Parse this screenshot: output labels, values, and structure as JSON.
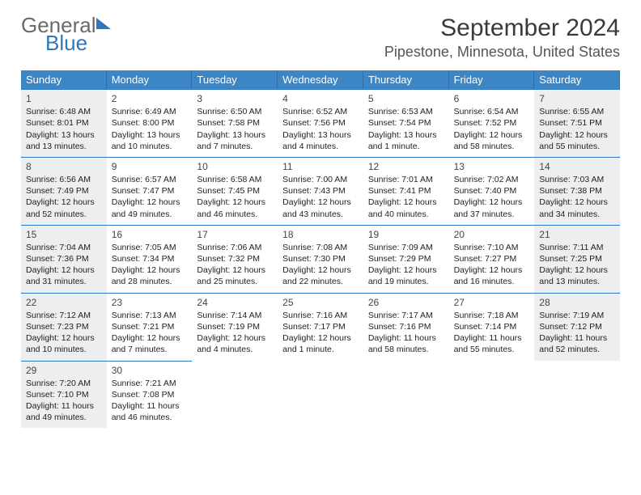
{
  "logo": {
    "general": "General",
    "blue": "Blue"
  },
  "header": {
    "month_title": "September 2024",
    "location": "Pipestone, Minnesota, United States"
  },
  "colors": {
    "header_bg": "#3d86c6",
    "header_text": "#ffffff",
    "accent": "#2f78bf",
    "shaded_bg": "#eceeef",
    "body_text": "#222222",
    "page_bg": "#ffffff"
  },
  "typography": {
    "month_title_fontsize": 30,
    "location_fontsize": 18,
    "dow_fontsize": 13,
    "cell_fontsize": 10.5,
    "daynum_fontsize": 12
  },
  "days_of_week": [
    "Sunday",
    "Monday",
    "Tuesday",
    "Wednesday",
    "Thursday",
    "Friday",
    "Saturday"
  ],
  "days": [
    {
      "n": "1",
      "shaded": true,
      "sunrise": "Sunrise: 6:48 AM",
      "sunset": "Sunset: 8:01 PM",
      "daylight": "Daylight: 13 hours and 13 minutes."
    },
    {
      "n": "2",
      "shaded": false,
      "sunrise": "Sunrise: 6:49 AM",
      "sunset": "Sunset: 8:00 PM",
      "daylight": "Daylight: 13 hours and 10 minutes."
    },
    {
      "n": "3",
      "shaded": false,
      "sunrise": "Sunrise: 6:50 AM",
      "sunset": "Sunset: 7:58 PM",
      "daylight": "Daylight: 13 hours and 7 minutes."
    },
    {
      "n": "4",
      "shaded": false,
      "sunrise": "Sunrise: 6:52 AM",
      "sunset": "Sunset: 7:56 PM",
      "daylight": "Daylight: 13 hours and 4 minutes."
    },
    {
      "n": "5",
      "shaded": false,
      "sunrise": "Sunrise: 6:53 AM",
      "sunset": "Sunset: 7:54 PM",
      "daylight": "Daylight: 13 hours and 1 minute."
    },
    {
      "n": "6",
      "shaded": false,
      "sunrise": "Sunrise: 6:54 AM",
      "sunset": "Sunset: 7:52 PM",
      "daylight": "Daylight: 12 hours and 58 minutes."
    },
    {
      "n": "7",
      "shaded": true,
      "sunrise": "Sunrise: 6:55 AM",
      "sunset": "Sunset: 7:51 PM",
      "daylight": "Daylight: 12 hours and 55 minutes."
    },
    {
      "n": "8",
      "shaded": true,
      "sunrise": "Sunrise: 6:56 AM",
      "sunset": "Sunset: 7:49 PM",
      "daylight": "Daylight: 12 hours and 52 minutes."
    },
    {
      "n": "9",
      "shaded": false,
      "sunrise": "Sunrise: 6:57 AM",
      "sunset": "Sunset: 7:47 PM",
      "daylight": "Daylight: 12 hours and 49 minutes."
    },
    {
      "n": "10",
      "shaded": false,
      "sunrise": "Sunrise: 6:58 AM",
      "sunset": "Sunset: 7:45 PM",
      "daylight": "Daylight: 12 hours and 46 minutes."
    },
    {
      "n": "11",
      "shaded": false,
      "sunrise": "Sunrise: 7:00 AM",
      "sunset": "Sunset: 7:43 PM",
      "daylight": "Daylight: 12 hours and 43 minutes."
    },
    {
      "n": "12",
      "shaded": false,
      "sunrise": "Sunrise: 7:01 AM",
      "sunset": "Sunset: 7:41 PM",
      "daylight": "Daylight: 12 hours and 40 minutes."
    },
    {
      "n": "13",
      "shaded": false,
      "sunrise": "Sunrise: 7:02 AM",
      "sunset": "Sunset: 7:40 PM",
      "daylight": "Daylight: 12 hours and 37 minutes."
    },
    {
      "n": "14",
      "shaded": true,
      "sunrise": "Sunrise: 7:03 AM",
      "sunset": "Sunset: 7:38 PM",
      "daylight": "Daylight: 12 hours and 34 minutes."
    },
    {
      "n": "15",
      "shaded": true,
      "sunrise": "Sunrise: 7:04 AM",
      "sunset": "Sunset: 7:36 PM",
      "daylight": "Daylight: 12 hours and 31 minutes."
    },
    {
      "n": "16",
      "shaded": false,
      "sunrise": "Sunrise: 7:05 AM",
      "sunset": "Sunset: 7:34 PM",
      "daylight": "Daylight: 12 hours and 28 minutes."
    },
    {
      "n": "17",
      "shaded": false,
      "sunrise": "Sunrise: 7:06 AM",
      "sunset": "Sunset: 7:32 PM",
      "daylight": "Daylight: 12 hours and 25 minutes."
    },
    {
      "n": "18",
      "shaded": false,
      "sunrise": "Sunrise: 7:08 AM",
      "sunset": "Sunset: 7:30 PM",
      "daylight": "Daylight: 12 hours and 22 minutes."
    },
    {
      "n": "19",
      "shaded": false,
      "sunrise": "Sunrise: 7:09 AM",
      "sunset": "Sunset: 7:29 PM",
      "daylight": "Daylight: 12 hours and 19 minutes."
    },
    {
      "n": "20",
      "shaded": false,
      "sunrise": "Sunrise: 7:10 AM",
      "sunset": "Sunset: 7:27 PM",
      "daylight": "Daylight: 12 hours and 16 minutes."
    },
    {
      "n": "21",
      "shaded": true,
      "sunrise": "Sunrise: 7:11 AM",
      "sunset": "Sunset: 7:25 PM",
      "daylight": "Daylight: 12 hours and 13 minutes."
    },
    {
      "n": "22",
      "shaded": true,
      "sunrise": "Sunrise: 7:12 AM",
      "sunset": "Sunset: 7:23 PM",
      "daylight": "Daylight: 12 hours and 10 minutes."
    },
    {
      "n": "23",
      "shaded": false,
      "sunrise": "Sunrise: 7:13 AM",
      "sunset": "Sunset: 7:21 PM",
      "daylight": "Daylight: 12 hours and 7 minutes."
    },
    {
      "n": "24",
      "shaded": false,
      "sunrise": "Sunrise: 7:14 AM",
      "sunset": "Sunset: 7:19 PM",
      "daylight": "Daylight: 12 hours and 4 minutes."
    },
    {
      "n": "25",
      "shaded": false,
      "sunrise": "Sunrise: 7:16 AM",
      "sunset": "Sunset: 7:17 PM",
      "daylight": "Daylight: 12 hours and 1 minute."
    },
    {
      "n": "26",
      "shaded": false,
      "sunrise": "Sunrise: 7:17 AM",
      "sunset": "Sunset: 7:16 PM",
      "daylight": "Daylight: 11 hours and 58 minutes."
    },
    {
      "n": "27",
      "shaded": false,
      "sunrise": "Sunrise: 7:18 AM",
      "sunset": "Sunset: 7:14 PM",
      "daylight": "Daylight: 11 hours and 55 minutes."
    },
    {
      "n": "28",
      "shaded": true,
      "sunrise": "Sunrise: 7:19 AM",
      "sunset": "Sunset: 7:12 PM",
      "daylight": "Daylight: 11 hours and 52 minutes."
    },
    {
      "n": "29",
      "shaded": true,
      "sunrise": "Sunrise: 7:20 AM",
      "sunset": "Sunset: 7:10 PM",
      "daylight": "Daylight: 11 hours and 49 minutes."
    },
    {
      "n": "30",
      "shaded": false,
      "sunrise": "Sunrise: 7:21 AM",
      "sunset": "Sunset: 7:08 PM",
      "daylight": "Daylight: 11 hours and 46 minutes."
    }
  ]
}
